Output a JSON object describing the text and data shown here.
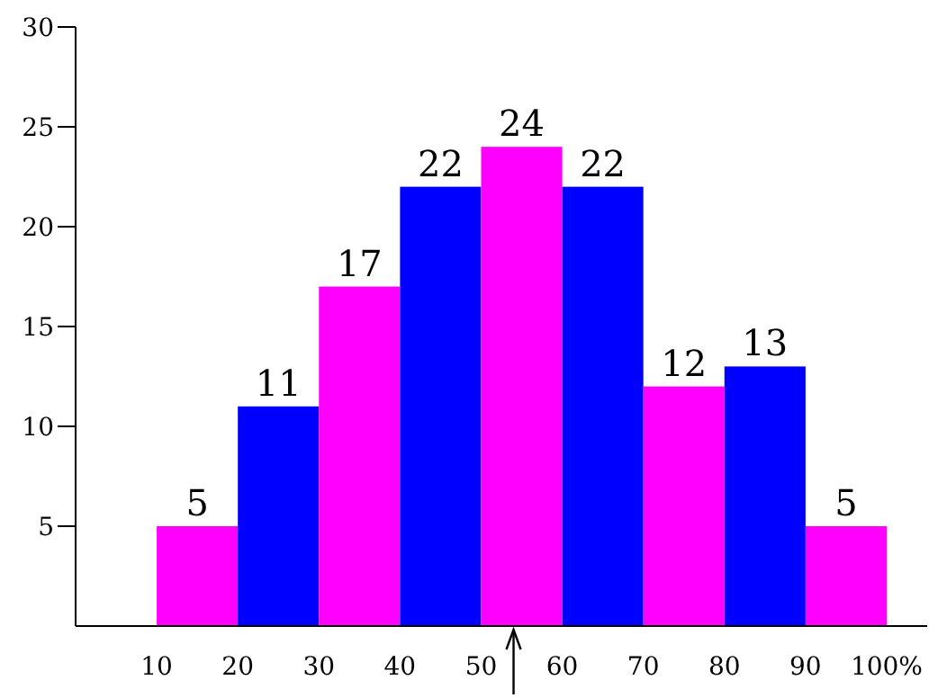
{
  "chart_data": {
    "type": "histogram",
    "bins": [
      10,
      20,
      30,
      40,
      50,
      60,
      70,
      80,
      90,
      100
    ],
    "values": [
      5,
      11,
      17,
      22,
      24,
      22,
      12,
      13,
      5
    ],
    "colors": [
      "#ff00ff",
      "#0000ff",
      "#ff00ff",
      "#0000ff",
      "#ff00ff",
      "#0000ff",
      "#ff00ff",
      "#0000ff",
      "#ff00ff"
    ],
    "xlim": [
      0,
      105
    ],
    "ylim": [
      0,
      30
    ],
    "xticks": [
      10,
      20,
      30,
      40,
      50,
      60,
      70,
      80,
      90,
      {
        "value": 100,
        "label": "100%"
      }
    ],
    "yticks": [
      5,
      10,
      15,
      20,
      25,
      30
    ],
    "data_labels": true
  }
}
